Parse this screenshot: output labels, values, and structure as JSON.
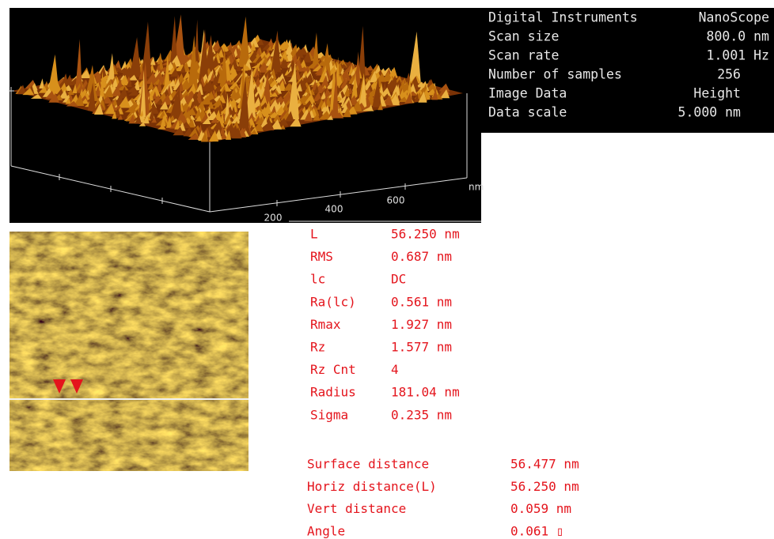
{
  "info_panel": {
    "rows": [
      [
        "Digital Instruments",
        "NanoScope"
      ],
      [
        "Scan size",
        "800.0 nm"
      ],
      [
        "Scan rate",
        "1.001 Hz"
      ],
      [
        "Number of samples",
        "256"
      ],
      [
        "Image Data",
        "Height"
      ],
      [
        "Data scale",
        "5.000 nm"
      ]
    ]
  },
  "surface_plot": {
    "axis_labels": [
      200,
      400,
      600
    ],
    "unit": "nm"
  },
  "roughness": {
    "rows": [
      [
        "L",
        "56.250 nm"
      ],
      [
        "RMS",
        "0.687 nm"
      ],
      [
        "lc",
        "DC"
      ],
      [
        "Ra(lc)",
        "0.561 nm"
      ],
      [
        "Rmax",
        "1.927 nm"
      ],
      [
        "Rz",
        "1.577 nm"
      ],
      [
        "Rz Cnt",
        "4"
      ],
      [
        "Radius",
        "181.04 nm"
      ],
      [
        "Sigma",
        "0.235 nm"
      ]
    ]
  },
  "section": {
    "rows": [
      [
        "Surface distance",
        "56.477 nm"
      ],
      [
        "Horiz distance(L)",
        "56.250 nm"
      ],
      [
        "Vert distance",
        "0.059 nm"
      ],
      [
        "Angle",
        "0.061 ▯"
      ]
    ]
  }
}
